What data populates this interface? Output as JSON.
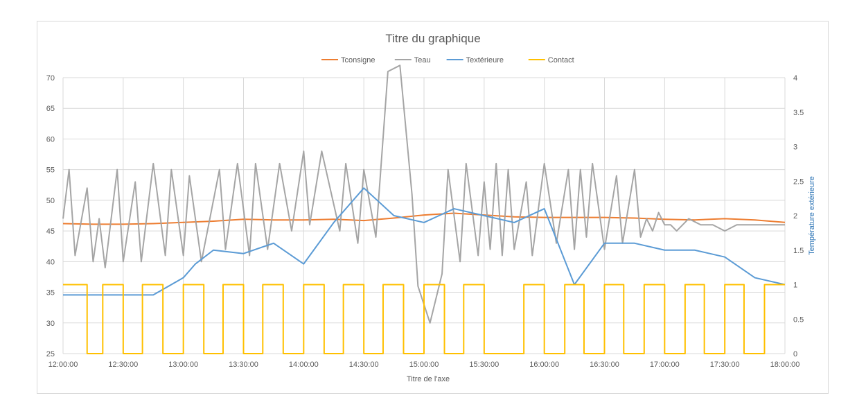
{
  "chart_data": {
    "type": "line",
    "title": "Titre du graphique",
    "xlabel": "Titre de l'axe",
    "ylabel": "",
    "y2label": "Température extérieure",
    "x_ticks": [
      "12:00:00",
      "12:30:00",
      "13:00:00",
      "13:30:00",
      "14:00:00",
      "14:30:00",
      "15:00:00",
      "15:30:00",
      "16:00:00",
      "16:30:00",
      "17:00:00",
      "17:30:00",
      "18:00:00"
    ],
    "ylim": [
      25,
      70
    ],
    "y_ticks": [
      25,
      30,
      35,
      40,
      45,
      50,
      55,
      60,
      65,
      70
    ],
    "y2lim": [
      0,
      4
    ],
    "y2_ticks": [
      "0",
      "0.5",
      "1",
      "1.5",
      "2",
      "2.5",
      "3",
      "3.5",
      "4"
    ],
    "grid": true,
    "legend_position": "top",
    "colors": {
      "Tconsigne": "#ed7d31",
      "Teau": "#a5a5a5",
      "Textérieure": "#5b9bd5",
      "Contact": "#ffc000"
    },
    "series": [
      {
        "name": "Tconsigne",
        "axis": "left",
        "x_hours": [
          0,
          0.25,
          0.5,
          0.75,
          1,
          1.25,
          1.5,
          1.75,
          2,
          2.25,
          2.5,
          2.75,
          3,
          3.25,
          3.5,
          3.75,
          4,
          4.25,
          4.5,
          4.75,
          5,
          5.25,
          5.5,
          5.75,
          6
        ],
        "values": [
          46.2,
          46.1,
          46.1,
          46.2,
          46.4,
          46.6,
          46.9,
          46.8,
          46.8,
          46.9,
          46.7,
          47.1,
          47.6,
          47.9,
          47.6,
          47.3,
          47.2,
          47.2,
          47.2,
          47.1,
          46.9,
          46.8,
          47.0,
          46.8,
          46.4
        ]
      },
      {
        "name": "Teau",
        "axis": "left",
        "x_hours": [
          0,
          0.05,
          0.1,
          0.2,
          0.25,
          0.3,
          0.35,
          0.45,
          0.5,
          0.6,
          0.65,
          0.75,
          0.85,
          0.9,
          1.0,
          1.05,
          1.15,
          1.3,
          1.35,
          1.45,
          1.55,
          1.6,
          1.7,
          1.8,
          1.9,
          2.0,
          2.05,
          2.15,
          2.3,
          2.35,
          2.45,
          2.5,
          2.6,
          2.7,
          2.8,
          2.9,
          2.95,
          3.05,
          3.15,
          3.2,
          3.3,
          3.35,
          3.45,
          3.5,
          3.55,
          3.6,
          3.65,
          3.7,
          3.75,
          3.85,
          3.9,
          4.0,
          4.1,
          4.2,
          4.25,
          4.3,
          4.35,
          4.4,
          4.5,
          4.6,
          4.65,
          4.75,
          4.8,
          4.85,
          4.9,
          4.95,
          5.0,
          5.05,
          5.1,
          5.2,
          5.3,
          5.4,
          5.5,
          5.6,
          5.7,
          5.8,
          5.9,
          6.0
        ],
        "values": [
          47,
          55,
          41,
          52,
          40,
          47,
          39,
          55,
          40,
          53,
          40,
          56,
          41,
          55,
          41,
          54,
          40,
          55,
          42,
          56,
          41,
          56,
          42,
          56,
          45,
          58,
          46,
          58,
          45,
          56,
          43,
          55,
          44,
          71,
          72,
          51,
          36,
          30,
          38,
          55,
          40,
          56,
          41,
          53,
          42,
          56,
          41,
          55,
          42,
          53,
          41,
          56,
          43,
          55,
          42,
          55,
          44,
          56,
          42,
          54,
          43,
          55,
          44,
          47,
          45,
          48,
          46,
          46,
          45,
          47,
          46,
          46,
          45,
          46,
          46,
          46,
          46,
          46
        ]
      },
      {
        "name": "Textérieure",
        "axis": "right",
        "x_hours": [
          0,
          0.25,
          0.5,
          0.75,
          1.0,
          1.1,
          1.25,
          1.5,
          1.75,
          2.0,
          2.25,
          2.5,
          2.75,
          3.0,
          3.25,
          3.5,
          3.75,
          4.0,
          4.25,
          4.5,
          4.75,
          5.0,
          5.25,
          5.5,
          5.75,
          6.0
        ],
        "values": [
          0.85,
          0.85,
          0.85,
          0.85,
          1.1,
          1.3,
          1.5,
          1.45,
          1.6,
          1.3,
          1.9,
          2.4,
          2.0,
          1.9,
          2.1,
          2.0,
          1.9,
          2.1,
          1.0,
          1.6,
          1.6,
          1.5,
          1.5,
          1.4,
          1.1,
          1.0
        ]
      },
      {
        "name": "Contact",
        "axis": "right",
        "x_hours": [
          0,
          0.2,
          0.33,
          0.5,
          0.66,
          0.83,
          1.0,
          1.17,
          1.33,
          1.5,
          1.66,
          1.83,
          2.0,
          2.17,
          2.33,
          2.5,
          2.66,
          2.83,
          3.0,
          3.17,
          3.33,
          3.5,
          3.66,
          3.83,
          4.0,
          4.17,
          4.33,
          4.5,
          4.66,
          4.83,
          5.0,
          5.17,
          5.33,
          5.5,
          5.66,
          5.83
        ],
        "values": [
          1,
          0,
          1,
          0,
          1,
          0,
          1,
          0,
          1,
          0,
          1,
          0,
          1,
          0,
          1,
          0,
          1,
          0,
          1,
          0,
          1,
          0,
          0,
          1,
          0,
          1,
          0,
          1,
          0,
          1,
          0,
          1,
          0,
          1,
          0,
          1
        ]
      }
    ]
  }
}
